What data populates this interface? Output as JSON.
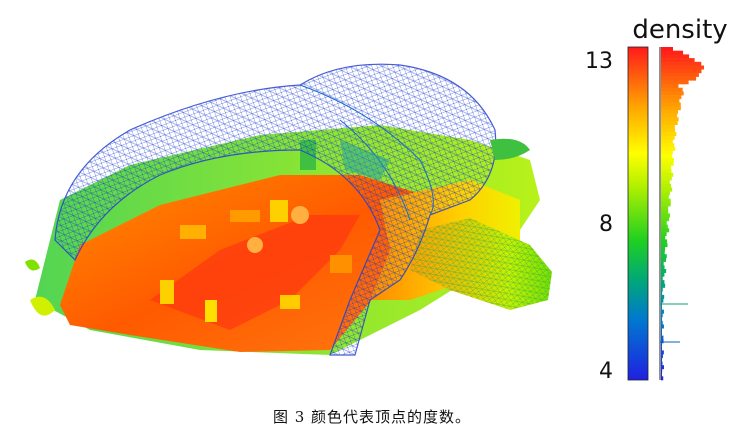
{
  "colorbar": {
    "title": "density",
    "tick_max": "13",
    "tick_mid": "8",
    "tick_min": "4",
    "range": [
      4,
      13
    ],
    "colors": [
      "#1f1fd6",
      "#00a0c8",
      "#00c060",
      "#7fe000",
      "#ffff00",
      "#ffa000",
      "#ff2000"
    ]
  },
  "caption": "图 3 颜色代表顶点的度数。"
}
